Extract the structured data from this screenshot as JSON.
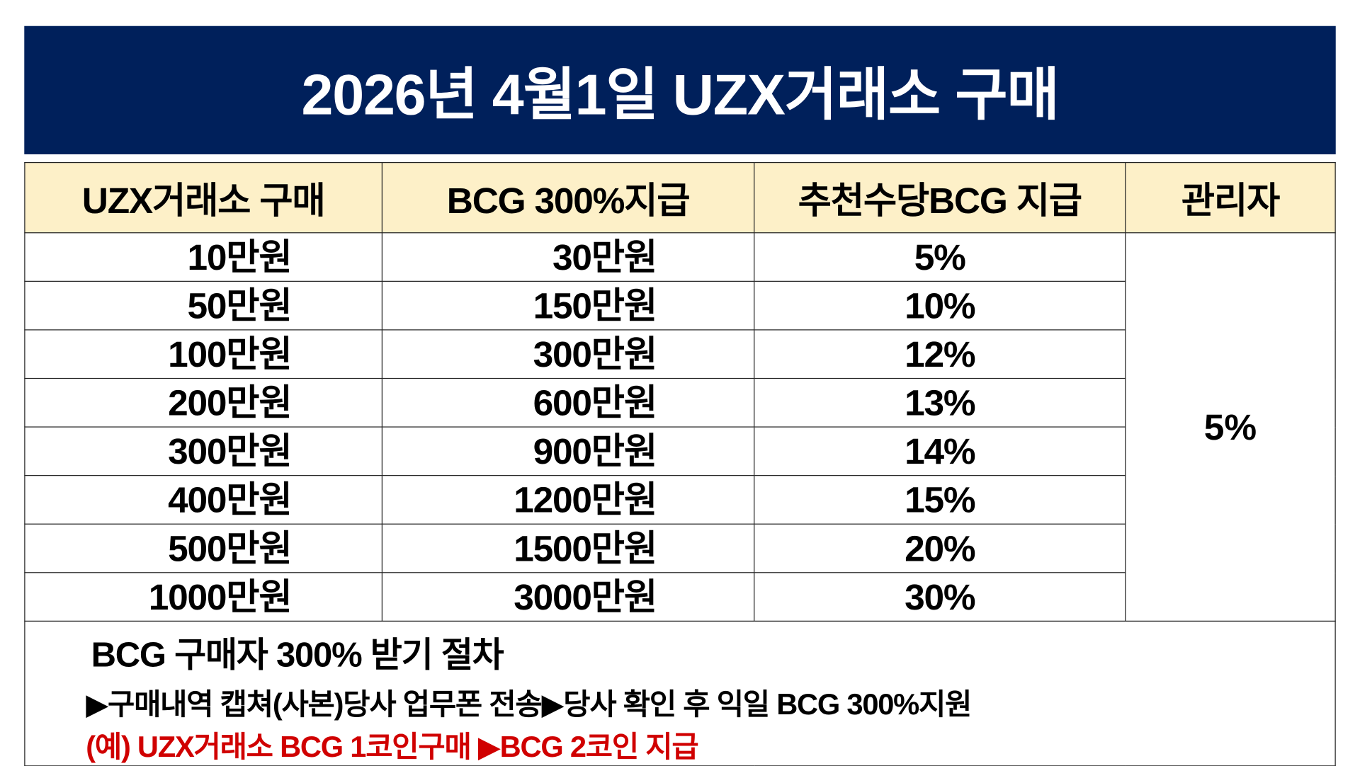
{
  "title": "2026년 4월1일 UZX거래소 구매",
  "table": {
    "headers": [
      "UZX거래소 구매",
      "BCG 300%지급",
      "추천수당BCG 지급",
      "관리자"
    ],
    "rows": [
      [
        "10만원",
        "30만원",
        "5%"
      ],
      [
        "50만원",
        "150만원",
        "10%"
      ],
      [
        "100만원",
        "300만원",
        "12%"
      ],
      [
        "200만원",
        "600만원",
        "13%"
      ],
      [
        "300만원",
        "900만원",
        "14%"
      ],
      [
        "400만원",
        "1200만원",
        "15%"
      ],
      [
        "500만원",
        "1500만원",
        "20%"
      ],
      [
        "1000만원",
        "3000만원",
        "30%"
      ]
    ],
    "manager_rate": "5%"
  },
  "footer": {
    "heading": "BCG 구매자 300% 받기 절차",
    "procedure": "▶구매내역 캡쳐(사본)당사 업무폰 전송▶당사 확인 후 익일 BCG 300%지원",
    "example": "(예) UZX거래소 BCG 1코인구매 ▶BCG 2코인 지급"
  },
  "colors": {
    "banner": "#00205b",
    "header_bg": "#fdf0c8",
    "example_text": "#d00000"
  }
}
